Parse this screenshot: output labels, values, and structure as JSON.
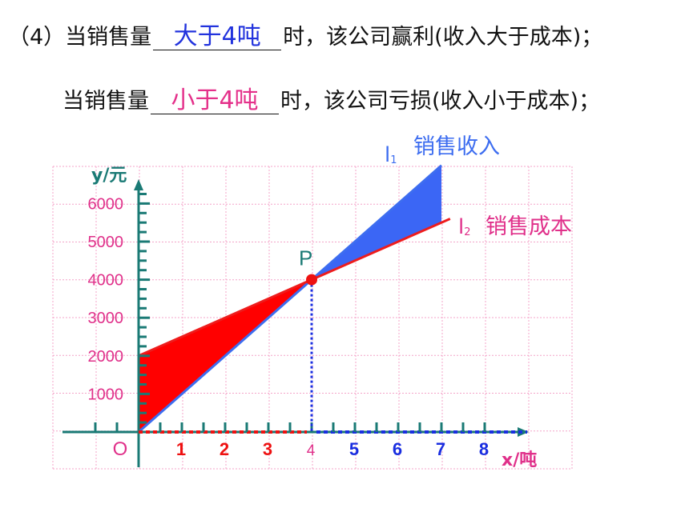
{
  "text": {
    "row1_prefix": "（4）当销售量",
    "row1_answer": "大于4吨",
    "row1_suffix": "时，该公司赢利(收入大于成本)；",
    "row2_prefix": "当销售量",
    "row2_answer": "小于4吨",
    "row2_suffix": "时，该公司亏损(收入小于成本)；"
  },
  "colors": {
    "income_line": "#3d6df0",
    "cost_line": "#ee1c1c",
    "profit_region": "#3b66f5",
    "loss_region": "#ff0000",
    "axis": "#1a7a75",
    "grid": "#f4a3c8",
    "y_tick_text": "#e0308a",
    "x_tick_red": "#ee1111",
    "x_tick_blue": "#1a2ee0",
    "point": "#ee1111"
  },
  "chart_data": {
    "type": "line",
    "xlabel": "x/吨",
    "ylabel": "y/元",
    "origin_label": "O",
    "x_ticks": [
      "1",
      "2",
      "3",
      "4",
      "5",
      "6",
      "7",
      "8"
    ],
    "y_ticks": [
      "1000",
      "2000",
      "3000",
      "4000",
      "5000",
      "6000"
    ],
    "xlim": [
      0,
      8.5
    ],
    "ylim": [
      0,
      6500
    ],
    "grid": true,
    "series": [
      {
        "name": "销售收入",
        "label": "l",
        "subscript": "1",
        "x": [
          0,
          7
        ],
        "y": [
          0,
          7000
        ]
      },
      {
        "name": "销售成本",
        "label": "l",
        "subscript": "2",
        "x": [
          0,
          7.2
        ],
        "y": [
          2000,
          5600
        ]
      }
    ],
    "intersection": {
      "label": "P",
      "x": 4,
      "y": 4000
    }
  }
}
